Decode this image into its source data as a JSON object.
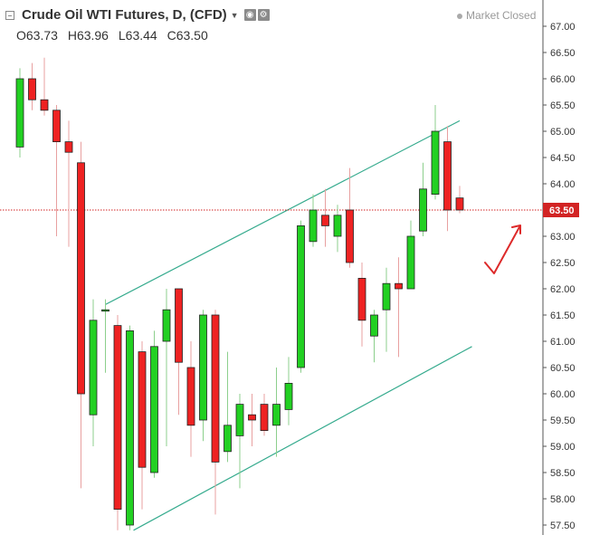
{
  "header": {
    "title": "Crude Oil WTI Futures, D, (CFD)",
    "ohlc": {
      "open": "O63.73",
      "high": "H63.96",
      "low": "L63.44",
      "close": "C63.50"
    },
    "market_status": "Market Closed",
    "icons": [
      "collapse-icon",
      "caret-down-icon",
      "eye-settings-icon",
      "gear-icon"
    ]
  },
  "price_label": "63.50",
  "colors": {
    "up": "#22d022",
    "down": "#ee2222",
    "trendline": "#36ab8e",
    "price_line": "#d22323",
    "annotation": "#dd2a2a"
  },
  "chart_data": {
    "type": "candlestick",
    "y_axis": {
      "min": 57.4,
      "max": 67.3,
      "ticks": [
        "57.50",
        "58.00",
        "58.50",
        "59.00",
        "59.50",
        "60.00",
        "60.50",
        "61.00",
        "61.50",
        "62.00",
        "62.50",
        "63.00",
        "63.50",
        "64.00",
        "64.50",
        "65.00",
        "65.50",
        "66.00",
        "66.50",
        "67.00"
      ],
      "position": "right"
    },
    "candles": [
      {
        "o": 64.7,
        "h": 66.2,
        "l": 64.5,
        "c": 66.0
      },
      {
        "o": 66.0,
        "h": 66.3,
        "l": 65.4,
        "c": 65.6
      },
      {
        "o": 65.6,
        "h": 66.4,
        "l": 65.3,
        "c": 65.4
      },
      {
        "o": 65.4,
        "h": 65.5,
        "l": 63.0,
        "c": 64.8
      },
      {
        "o": 64.8,
        "h": 65.2,
        "l": 62.8,
        "c": 64.6
      },
      {
        "o": 64.4,
        "h": 64.8,
        "l": 58.2,
        "c": 60.0
      },
      {
        "o": 59.6,
        "h": 61.8,
        "l": 59.0,
        "c": 61.4
      },
      {
        "o": 61.6,
        "h": 61.8,
        "l": 60.4,
        "c": 61.6
      },
      {
        "o": 61.3,
        "h": 61.5,
        "l": 57.4,
        "c": 57.8
      },
      {
        "o": 57.5,
        "h": 61.3,
        "l": 57.4,
        "c": 61.2
      },
      {
        "o": 60.8,
        "h": 61.0,
        "l": 57.8,
        "c": 58.6
      },
      {
        "o": 58.5,
        "h": 61.2,
        "l": 58.4,
        "c": 60.9
      },
      {
        "o": 61.0,
        "h": 62.0,
        "l": 59.0,
        "c": 61.6
      },
      {
        "o": 62.0,
        "h": 62.0,
        "l": 59.6,
        "c": 60.6
      },
      {
        "o": 60.5,
        "h": 61.0,
        "l": 58.8,
        "c": 59.4
      },
      {
        "o": 59.5,
        "h": 61.6,
        "l": 59.1,
        "c": 61.5
      },
      {
        "o": 61.5,
        "h": 61.6,
        "l": 57.7,
        "c": 58.7
      },
      {
        "o": 58.9,
        "h": 60.8,
        "l": 58.7,
        "c": 59.4
      },
      {
        "o": 59.2,
        "h": 60.0,
        "l": 58.2,
        "c": 59.8
      },
      {
        "o": 59.6,
        "h": 60.0,
        "l": 59.0,
        "c": 59.5
      },
      {
        "o": 59.8,
        "h": 60.0,
        "l": 59.2,
        "c": 59.3
      },
      {
        "o": 59.4,
        "h": 60.5,
        "l": 58.8,
        "c": 59.8
      },
      {
        "o": 59.7,
        "h": 60.7,
        "l": 59.4,
        "c": 60.2
      },
      {
        "o": 60.5,
        "h": 63.3,
        "l": 60.4,
        "c": 63.2
      },
      {
        "o": 62.9,
        "h": 63.8,
        "l": 62.8,
        "c": 63.5
      },
      {
        "o": 63.4,
        "h": 63.9,
        "l": 62.8,
        "c": 63.2
      },
      {
        "o": 63.0,
        "h": 63.6,
        "l": 62.7,
        "c": 63.4
      },
      {
        "o": 63.5,
        "h": 64.3,
        "l": 62.4,
        "c": 62.5
      },
      {
        "o": 62.2,
        "h": 62.5,
        "l": 60.9,
        "c": 61.4
      },
      {
        "o": 61.1,
        "h": 61.6,
        "l": 60.6,
        "c": 61.5
      },
      {
        "o": 61.6,
        "h": 62.4,
        "l": 60.8,
        "c": 62.1
      },
      {
        "o": 62.1,
        "h": 62.6,
        "l": 60.7,
        "c": 62.0
      },
      {
        "o": 62.0,
        "h": 63.3,
        "l": 62.0,
        "c": 63.0
      },
      {
        "o": 63.1,
        "h": 64.4,
        "l": 63.0,
        "c": 63.9
      },
      {
        "o": 63.8,
        "h": 65.5,
        "l": 63.7,
        "c": 65.0
      },
      {
        "o": 64.8,
        "h": 65.1,
        "l": 63.1,
        "c": 63.5
      },
      {
        "o": 63.73,
        "h": 63.96,
        "l": 63.44,
        "c": 63.5
      }
    ],
    "last_price": 63.5,
    "trendlines": [
      {
        "x1": 7.0,
        "y1": 61.7,
        "x2": 36.0,
        "y2": 65.2
      },
      {
        "x1": 9.3,
        "y1": 57.4,
        "x2": 37.0,
        "y2": 60.9
      }
    ]
  }
}
